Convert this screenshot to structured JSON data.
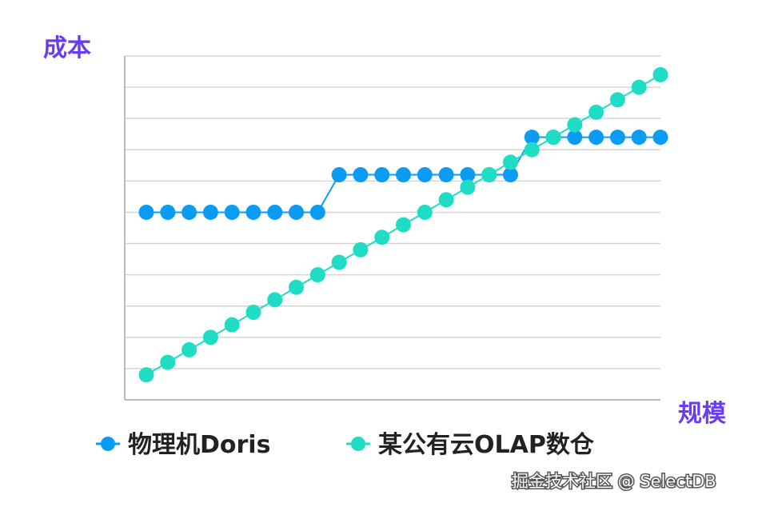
{
  "colors": {
    "grid": "#d4d4d4",
    "axis": "#bbbbbb",
    "axis_title": "#6a3cf0",
    "series_physical": "#0a9cf2",
    "series_cloud": "#1fdcc5"
  },
  "chart_data": {
    "type": "line",
    "ylabel": "成本",
    "xlabel": "规模",
    "grid": "horizontal",
    "legend_position": "bottom",
    "xlim": [
      0,
      25
    ],
    "ylim": [
      0,
      11
    ],
    "x": [
      1,
      2,
      3,
      4,
      5,
      6,
      7,
      8,
      9,
      10,
      11,
      12,
      13,
      14,
      15,
      16,
      17,
      18,
      19,
      20,
      21,
      22,
      23,
      24,
      25
    ],
    "series": [
      {
        "name": "物理机Doris",
        "color": "#0a9cf2",
        "values": [
          6,
          6,
          6,
          6,
          6,
          6,
          6,
          6,
          6,
          7.2,
          7.2,
          7.2,
          7.2,
          7.2,
          7.2,
          7.2,
          7.2,
          7.2,
          8.4,
          8.4,
          8.4,
          8.4,
          8.4,
          8.4,
          8.4
        ]
      },
      {
        "name": "某公有云OLAP数仓",
        "color": "#1fdcc5",
        "values": [
          0.8,
          1.2,
          1.6,
          2.0,
          2.4,
          2.8,
          3.2,
          3.6,
          4.0,
          4.4,
          4.8,
          5.2,
          5.6,
          6.0,
          6.4,
          6.8,
          7.2,
          7.6,
          8.0,
          8.4,
          8.8,
          9.2,
          9.6,
          10.0,
          10.4
        ]
      }
    ]
  },
  "watermark": "掘金技术社区 @ SelectDB"
}
